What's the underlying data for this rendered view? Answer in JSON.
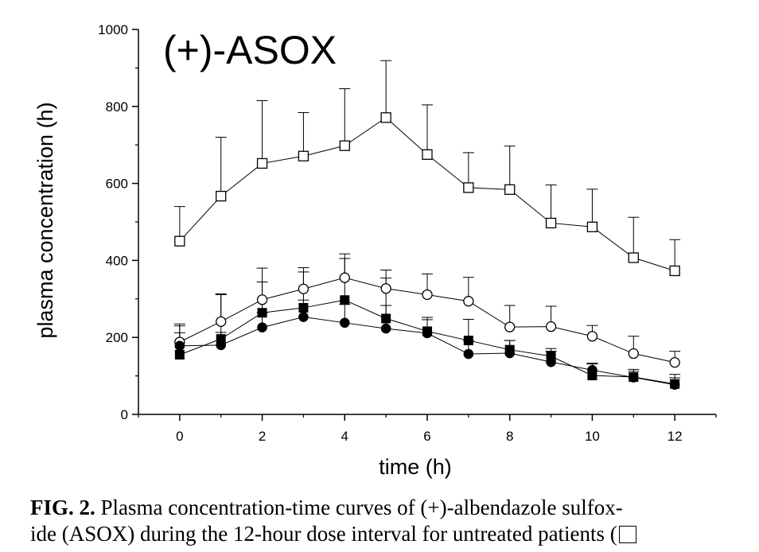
{
  "chart_data": {
    "type": "line",
    "title": "(+)-ASOX",
    "xlabel": "time (h)",
    "ylabel": "plasma concentration (h)",
    "xlim": [
      -1,
      13
    ],
    "ylim": [
      0,
      1000
    ],
    "xticks": [
      0,
      2,
      4,
      6,
      8,
      10,
      12
    ],
    "yticks": [
      0,
      200,
      400,
      600,
      800,
      1000
    ],
    "grid": false,
    "x": [
      0,
      1,
      2,
      3,
      4,
      5,
      6,
      7,
      8,
      9,
      10,
      11,
      12
    ],
    "series": [
      {
        "marker": "open-square",
        "values": [
          450,
          567,
          652,
          671,
          698,
          771,
          675,
          589,
          584,
          497,
          487,
          407,
          373
        ],
        "error": [
          90,
          153,
          163,
          113,
          148,
          148,
          129,
          91,
          113,
          99,
          98,
          105,
          81
        ]
      },
      {
        "marker": "open-circle",
        "values": [
          188,
          241,
          298,
          326,
          355,
          327,
          311,
          294,
          227,
          228,
          203,
          158,
          135
        ],
        "error": [
          47,
          72,
          82,
          55,
          62,
          48,
          54,
          62,
          56,
          53,
          28,
          45,
          29
        ]
      },
      {
        "marker": "filled-square",
        "values": [
          155,
          196,
          264,
          277,
          297,
          249,
          216,
          192,
          168,
          151,
          101,
          97,
          79
        ],
        "error": [
          75,
          115,
          80,
          93,
          108,
          105,
          30,
          55,
          24,
          20,
          30,
          15,
          25
        ]
      },
      {
        "marker": "filled-circle",
        "values": [
          178,
          180,
          226,
          253,
          238,
          223,
          211,
          157,
          159,
          136,
          115,
          96,
          77
        ],
        "error": [
          34,
          33,
          38,
          44,
          48,
          60,
          41,
          34,
          33,
          28,
          18,
          21,
          18
        ]
      }
    ]
  },
  "caption": {
    "label": "FIG. 2.",
    "line1": "Plasma concentration-time curves of (+)-albendazole sulfox-",
    "line2": "ide (ASOX) during the 12-hour dose interval for untreated patients ("
  }
}
